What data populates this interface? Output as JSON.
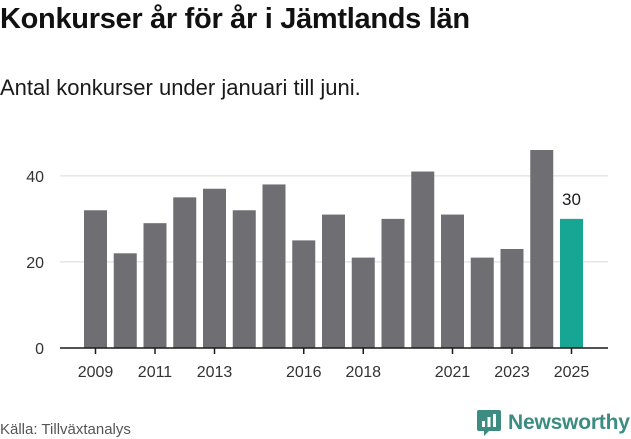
{
  "chart_data": {
    "type": "bar",
    "title": "Konkurser år för år i Jämtlands län",
    "subtitle": "Antal konkurser under januari till juni.",
    "categories": [
      "2009",
      "2010",
      "2011",
      "2012",
      "2013",
      "2014",
      "2015",
      "2016",
      "2017",
      "2018",
      "2019",
      "2020",
      "2021",
      "2022",
      "2023",
      "2024",
      "2025"
    ],
    "values": [
      32,
      22,
      29,
      35,
      37,
      32,
      38,
      25,
      31,
      21,
      30,
      41,
      31,
      21,
      23,
      46,
      30
    ],
    "x_tick_labels": [
      "2009",
      "2011",
      "2013",
      "2016",
      "2018",
      "2021",
      "2023",
      "2025"
    ],
    "y_ticks": [
      0,
      20,
      40
    ],
    "ylim": [
      0,
      46
    ],
    "grid": true,
    "bar_color": "#6f6e73",
    "highlight_color": "#17a594",
    "highlight_index": 16,
    "highlight_label": "30",
    "xlabel": "",
    "ylabel": ""
  },
  "source": "Källa: Tillväxtanalys",
  "brand": {
    "name": "Newsworthy",
    "icon": "newsworthy-logo-icon",
    "color": "#3c8c81"
  }
}
